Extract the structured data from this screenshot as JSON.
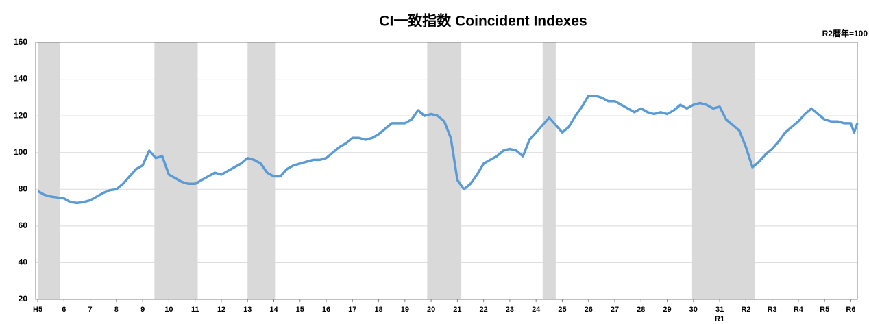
{
  "chart_data": {
    "type": "line",
    "title": "CI一致指数 Coincident Indexes",
    "unit_note": "R2暦年=100",
    "x": [
      5,
      5.25,
      5.5,
      5.75,
      6,
      6.25,
      6.5,
      6.75,
      7,
      7.25,
      7.5,
      7.75,
      8,
      8.25,
      8.5,
      8.75,
      9,
      9.25,
      9.5,
      9.75,
      10,
      10.25,
      10.5,
      10.75,
      11,
      11.25,
      11.5,
      11.75,
      12,
      12.25,
      12.5,
      12.75,
      13,
      13.25,
      13.5,
      13.75,
      14,
      14.25,
      14.5,
      14.75,
      15,
      15.25,
      15.5,
      15.75,
      16,
      16.25,
      16.5,
      16.75,
      17,
      17.25,
      17.5,
      17.75,
      18,
      18.25,
      18.5,
      18.75,
      19,
      19.25,
      19.5,
      19.75,
      20,
      20.25,
      20.5,
      20.75,
      21,
      21.25,
      21.5,
      21.75,
      22,
      22.25,
      22.5,
      22.75,
      23,
      23.25,
      23.5,
      23.75,
      24,
      24.25,
      24.5,
      24.75,
      25,
      25.25,
      25.5,
      25.75,
      26,
      26.25,
      26.5,
      26.75,
      27,
      27.25,
      27.5,
      27.75,
      28,
      28.25,
      28.5,
      28.75,
      29,
      29.25,
      29.5,
      29.75,
      30,
      30.25,
      30.5,
      30.75,
      31,
      31.25,
      31.5,
      31.75,
      32,
      32.25,
      32.5,
      32.75,
      33,
      33.25,
      33.5,
      33.75,
      34,
      34.25,
      34.5,
      34.75,
      35,
      35.25,
      35.5,
      35.75,
      36,
      36.125,
      36.25
    ],
    "series": [
      {
        "color": "#5b9bd5",
        "values": [
          79,
          77,
          76,
          75.5,
          75,
          73,
          72.5,
          73,
          74,
          76,
          78,
          79.5,
          80,
          83,
          87,
          91,
          93,
          101,
          97,
          98,
          88,
          86,
          84,
          83,
          83,
          85,
          87,
          89,
          88,
          90,
          92,
          94,
          97,
          96,
          94,
          89,
          87,
          87,
          91,
          93,
          94,
          95,
          96,
          96,
          97,
          100,
          103,
          105,
          108,
          108,
          107,
          108,
          110,
          113,
          116,
          116,
          116,
          118,
          123,
          120,
          121,
          120,
          117,
          108,
          85,
          80,
          83,
          88,
          94,
          96,
          98,
          101,
          102,
          101,
          98,
          107,
          111,
          115,
          119,
          115,
          111,
          114,
          120,
          125,
          131,
          131,
          130,
          128,
          128,
          126,
          124,
          122,
          124,
          122,
          121,
          122,
          121,
          123,
          126,
          124,
          126,
          127,
          126,
          124,
          125,
          118,
          115,
          112,
          103,
          92,
          95,
          99,
          102,
          106,
          111,
          114,
          117,
          121,
          124,
          121,
          118,
          117,
          117,
          116,
          116,
          111,
          116
        ]
      }
    ],
    "shaded_ranges": [
      [
        5,
        5.85
      ],
      [
        9.45,
        11.1
      ],
      [
        13,
        14.05
      ],
      [
        19.85,
        21.15
      ],
      [
        24.25,
        24.75
      ],
      [
        29.95,
        32.35
      ]
    ],
    "shade_color": "#d9d9d9",
    "xlim": [
      4.92,
      36.25
    ],
    "xticks": [
      {
        "value": 5,
        "label": "H5"
      },
      6,
      7,
      8,
      9,
      10,
      11,
      12,
      13,
      14,
      15,
      16,
      17,
      18,
      19,
      20,
      21,
      22,
      23,
      24,
      25,
      26,
      27,
      28,
      29,
      30,
      31,
      {
        "value": 32,
        "label": "R2"
      },
      {
        "value": 33,
        "label": "R3"
      },
      {
        "value": 34,
        "label": "R4"
      },
      {
        "value": 35,
        "label": "R5"
      },
      {
        "value": 36,
        "label": "R6"
      }
    ],
    "annotations": [
      {
        "text": "R1",
        "x": 31
      }
    ],
    "ylim": [
      20,
      160
    ],
    "yticks": [
      20,
      40,
      60,
      80,
      100,
      120,
      140,
      160
    ],
    "grid": true
  }
}
